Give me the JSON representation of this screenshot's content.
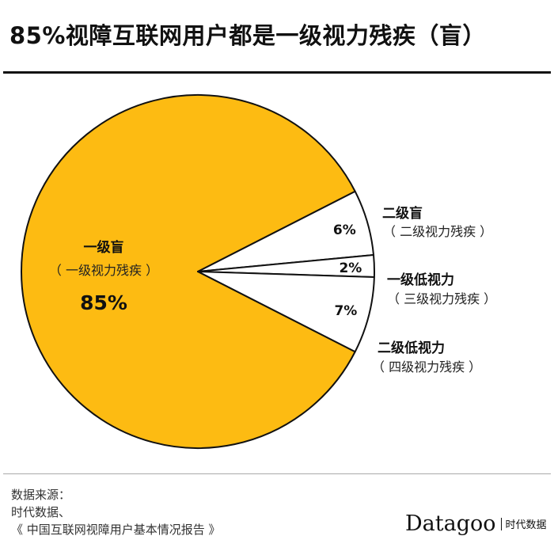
{
  "title": "85%视障互联网用户都是一级视力残疾（盲）",
  "chart_data": {
    "type": "pie",
    "title": "85%视障互联网用户都是一级视力残疾（盲）",
    "slices": [
      {
        "label": "一级盲",
        "sublabel": "（ 一级视力残疾 ）",
        "value": 85,
        "value_label": "85%",
        "color": "#FDBB12"
      },
      {
        "label": "二级盲",
        "sublabel": "（ 二级视力残疾 ）",
        "value": 6,
        "value_label": "6%",
        "color": "#FFFFFF"
      },
      {
        "label": "一级低视力",
        "sublabel": "（ 三级视力残疾 ）",
        "value": 2,
        "value_label": "2%",
        "color": "#FFFFFF"
      },
      {
        "label": "二级低视力",
        "sublabel": "（ 四级视力残疾 ）",
        "value": 7,
        "value_label": "7%",
        "color": "#FFFFFF"
      }
    ]
  },
  "source": {
    "lines": [
      "数据来源：",
      "时代数据、",
      "《 中国互联网视障用户基本情况报告 》"
    ]
  },
  "brand": {
    "name": "Datagoo",
    "cn": "时代数据"
  }
}
